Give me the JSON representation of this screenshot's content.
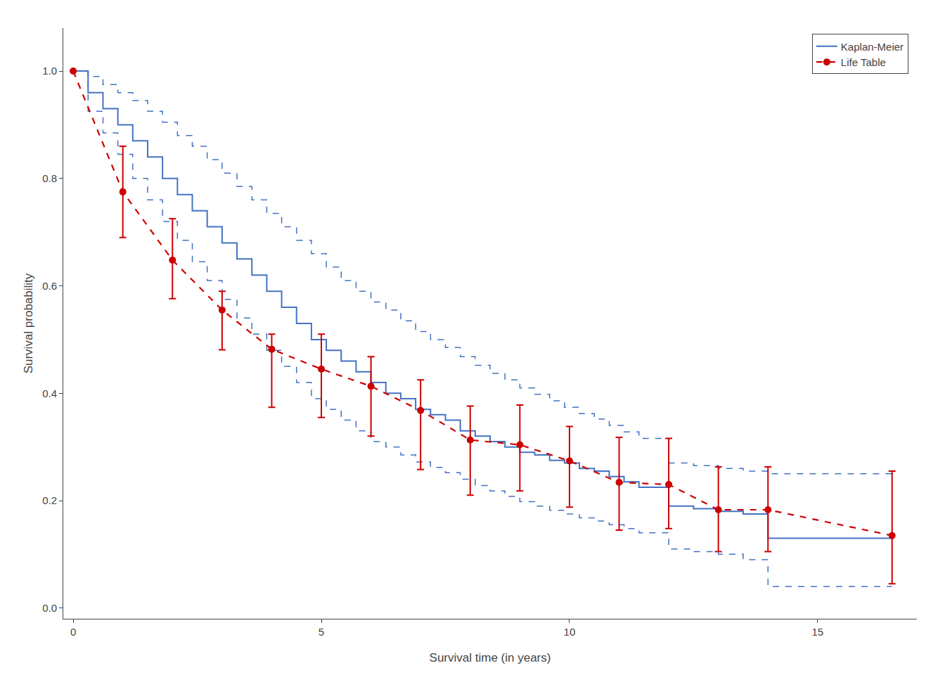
{
  "chart_data": {
    "type": "line",
    "xlabel": "Survival time (in years)",
    "ylabel": "Survival probability",
    "xlim": [
      -0.2,
      17.0
    ],
    "ylim": [
      -0.02,
      1.08
    ],
    "xticks": [
      0,
      5,
      10,
      15
    ],
    "yticks": [
      {
        "value": 0.0,
        "label": "0.0"
      },
      0.2,
      0.4,
      0.6,
      0.8,
      {
        "value": 1.0,
        "label": "1.0"
      }
    ],
    "grid": false,
    "legend": "upper right",
    "series": [
      {
        "name": "Kaplan-Meier",
        "color": "#4472C4",
        "line_style": "solid",
        "x": [
          0,
          0.3,
          0.3,
          0.6,
          0.6,
          0.9,
          0.9,
          1.2,
          1.2,
          1.5,
          1.5,
          1.8,
          1.8,
          2.1,
          2.1,
          2.4,
          2.4,
          2.7,
          2.7,
          3.0,
          3.0,
          3.3,
          3.3,
          3.6,
          3.6,
          3.9,
          3.9,
          4.2,
          4.2,
          4.5,
          4.5,
          4.8,
          4.8,
          5.1,
          5.1,
          5.4,
          5.4,
          5.7,
          5.7,
          6.0,
          6.0,
          6.3,
          6.3,
          6.6,
          6.6,
          6.9,
          6.9,
          7.2,
          7.2,
          7.5,
          7.5,
          7.8,
          7.8,
          8.1,
          8.1,
          8.4,
          8.4,
          8.7,
          8.7,
          9.0,
          9.0,
          9.3,
          9.3,
          9.6,
          9.6,
          9.9,
          9.9,
          10.2,
          10.2,
          10.5,
          10.5,
          10.8,
          10.8,
          11.1,
          11.1,
          11.4,
          11.4,
          12.0,
          12.0,
          12.5,
          12.5,
          13.0,
          13.0,
          13.5,
          13.5,
          14.0,
          14.0,
          16.5
        ],
        "values": [
          1.0,
          1.0,
          0.96,
          0.96,
          0.93,
          0.93,
          0.9,
          0.9,
          0.87,
          0.87,
          0.84,
          0.84,
          0.8,
          0.8,
          0.77,
          0.77,
          0.74,
          0.74,
          0.71,
          0.71,
          0.68,
          0.68,
          0.65,
          0.65,
          0.62,
          0.62,
          0.59,
          0.59,
          0.56,
          0.56,
          0.53,
          0.53,
          0.5,
          0.5,
          0.48,
          0.48,
          0.46,
          0.46,
          0.44,
          0.44,
          0.42,
          0.42,
          0.4,
          0.4,
          0.39,
          0.39,
          0.37,
          0.37,
          0.36,
          0.36,
          0.35,
          0.35,
          0.33,
          0.33,
          0.32,
          0.32,
          0.31,
          0.31,
          0.3,
          0.3,
          0.29,
          0.29,
          0.285,
          0.285,
          0.275,
          0.275,
          0.27,
          0.27,
          0.26,
          0.26,
          0.255,
          0.255,
          0.245,
          0.245,
          0.235,
          0.235,
          0.225,
          0.225,
          0.19,
          0.19,
          0.185,
          0.185,
          0.18,
          0.18,
          0.175,
          0.175,
          0.13,
          0.13
        ],
        "ci_upper": [
          1.0,
          1.0,
          0.99,
          0.99,
          0.975,
          0.975,
          0.96,
          0.96,
          0.945,
          0.945,
          0.925,
          0.925,
          0.905,
          0.905,
          0.88,
          0.88,
          0.86,
          0.86,
          0.835,
          0.835,
          0.81,
          0.81,
          0.785,
          0.785,
          0.76,
          0.76,
          0.735,
          0.735,
          0.71,
          0.71,
          0.685,
          0.685,
          0.66,
          0.66,
          0.635,
          0.635,
          0.61,
          0.61,
          0.59,
          0.59,
          0.57,
          0.57,
          0.555,
          0.555,
          0.535,
          0.535,
          0.515,
          0.515,
          0.5,
          0.5,
          0.485,
          0.485,
          0.468,
          0.468,
          0.452,
          0.452,
          0.437,
          0.437,
          0.425,
          0.425,
          0.41,
          0.41,
          0.398,
          0.398,
          0.386,
          0.386,
          0.374,
          0.374,
          0.362,
          0.362,
          0.352,
          0.352,
          0.34,
          0.34,
          0.328,
          0.328,
          0.316,
          0.316,
          0.27,
          0.27,
          0.265,
          0.265,
          0.26,
          0.26,
          0.255,
          0.255,
          0.25,
          0.25
        ],
        "ci_lower": [
          1.0,
          1.0,
          0.925,
          0.925,
          0.885,
          0.885,
          0.845,
          0.845,
          0.8,
          0.8,
          0.76,
          0.76,
          0.72,
          0.72,
          0.685,
          0.685,
          0.645,
          0.645,
          0.61,
          0.61,
          0.575,
          0.575,
          0.54,
          0.54,
          0.51,
          0.51,
          0.48,
          0.48,
          0.45,
          0.45,
          0.42,
          0.42,
          0.39,
          0.39,
          0.37,
          0.37,
          0.35,
          0.35,
          0.33,
          0.33,
          0.31,
          0.31,
          0.3,
          0.3,
          0.285,
          0.285,
          0.272,
          0.272,
          0.262,
          0.262,
          0.252,
          0.252,
          0.24,
          0.24,
          0.228,
          0.228,
          0.218,
          0.218,
          0.208,
          0.208,
          0.198,
          0.198,
          0.19,
          0.19,
          0.182,
          0.182,
          0.175,
          0.175,
          0.168,
          0.168,
          0.162,
          0.162,
          0.155,
          0.155,
          0.148,
          0.148,
          0.14,
          0.14,
          0.11,
          0.11,
          0.105,
          0.105,
          0.1,
          0.1,
          0.09,
          0.09,
          0.04,
          0.04
        ]
      },
      {
        "name": "Life Table",
        "color": "#CC0000",
        "line_style": "dashed",
        "marker": "circle",
        "x": [
          0,
          1,
          2,
          3,
          4,
          5,
          6,
          7,
          8,
          9,
          10,
          11,
          12,
          13,
          14,
          16.5
        ],
        "values": [
          1.0,
          0.775,
          0.648,
          0.555,
          0.482,
          0.445,
          0.413,
          0.368,
          0.313,
          0.304,
          0.274,
          0.234,
          0.23,
          0.183,
          0.183,
          0.135
        ],
        "ci_upper": [
          1.0,
          0.86,
          0.725,
          0.59,
          0.51,
          0.51,
          0.468,
          0.425,
          0.376,
          0.378,
          0.338,
          0.318,
          0.316,
          0.263,
          0.263,
          0.255
        ],
        "ci_lower": [
          1.0,
          0.69,
          0.576,
          0.481,
          0.374,
          0.355,
          0.32,
          0.258,
          0.21,
          0.218,
          0.188,
          0.145,
          0.148,
          0.105,
          0.105,
          0.045
        ]
      }
    ]
  }
}
